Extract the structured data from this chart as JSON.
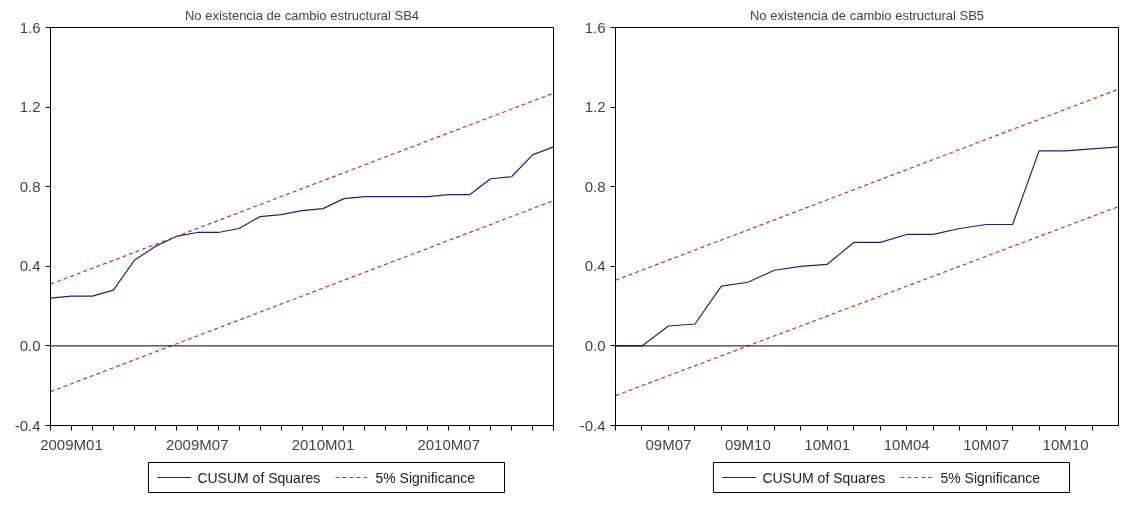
{
  "chart_data": [
    {
      "type": "line",
      "title": "No existencia de cambio estructural SB4",
      "xlim": [
        "2008-12",
        "2010-12"
      ],
      "ylim": [
        -0.4,
        1.6
      ],
      "yticks": [
        -0.4,
        {
          "value": 0,
          "label": "0.0"
        },
        0.4,
        0.8,
        1.2,
        1.6
      ],
      "xticks": [
        {
          "value": "2008-12",
          "label": null
        },
        {
          "value": "2009-01",
          "label": "2009M01"
        },
        {
          "value": "2009-02",
          "label": null
        },
        {
          "value": "2009-03",
          "label": null
        },
        {
          "value": "2009-04",
          "label": null
        },
        {
          "value": "2009-05",
          "label": null
        },
        {
          "value": "2009-06",
          "label": null
        },
        {
          "value": "2009-07",
          "label": "2009M07"
        },
        {
          "value": "2009-08",
          "label": null
        },
        {
          "value": "2009-09",
          "label": null
        },
        {
          "value": "2009-10",
          "label": null
        },
        {
          "value": "2009-11",
          "label": null
        },
        {
          "value": "2009-12",
          "label": null
        },
        {
          "value": "2010-01",
          "label": "2010M01"
        },
        {
          "value": "2010-02",
          "label": null
        },
        {
          "value": "2010-03",
          "label": null
        },
        {
          "value": "2010-04",
          "label": null
        },
        {
          "value": "2010-05",
          "label": null
        },
        {
          "value": "2010-06",
          "label": null
        },
        {
          "value": "2010-07",
          "label": "2010M07"
        },
        {
          "value": "2010-08",
          "label": null
        },
        {
          "value": "2010-09",
          "label": null
        },
        {
          "value": "2010-10",
          "label": null
        },
        {
          "value": "2010-11",
          "label": null
        },
        {
          "value": "2010-12",
          "label": null
        }
      ],
      "grid": false,
      "legend": "bottom",
      "ref_lines": [
        {
          "axis": "y",
          "value": 0.0,
          "color": "#000000"
        }
      ],
      "series": [
        {
          "name": "CUSUM of Squares",
          "color": "#1f1f8c",
          "line_style": "solid",
          "x": [
            "2008-12",
            "2009-01",
            "2009-02",
            "2009-03",
            "2009-04",
            "2009-05",
            "2009-06",
            "2009-07",
            "2009-08",
            "2009-09",
            "2009-10",
            "2009-11",
            "2009-12",
            "2010-01",
            "2010-02",
            "2010-03",
            "2010-04",
            "2010-05",
            "2010-06",
            "2010-07",
            "2010-08",
            "2010-09",
            "2010-10",
            "2010-11",
            "2010-12"
          ],
          "values": [
            0.24,
            0.25,
            0.25,
            0.28,
            0.43,
            0.5,
            0.55,
            0.57,
            0.57,
            0.59,
            0.65,
            0.66,
            0.68,
            0.69,
            0.74,
            0.75,
            0.75,
            0.75,
            0.75,
            0.76,
            0.76,
            0.84,
            0.85,
            0.96,
            1.0
          ]
        },
        {
          "name": "5% Significance",
          "color": "#c83232",
          "line_style": "dashed",
          "x": [
            "2008-12",
            "2010-12"
          ],
          "values": [
            0.31,
            1.27
          ]
        },
        {
          "color": "#c83232",
          "line_style": "dashed",
          "x": [
            "2008-12",
            "2010-12"
          ],
          "values": [
            -0.23,
            0.73
          ]
        }
      ]
    },
    {
      "type": "line",
      "title": "No existencia de cambio estructural SB5",
      "xlim": [
        "2009-05",
        "2010-12"
      ],
      "ylim": [
        -0.4,
        1.6
      ],
      "yticks": [
        -0.4,
        {
          "value": 0,
          "label": "0.0"
        },
        0.4,
        0.8,
        1.2,
        1.6
      ],
      "xticks": [
        {
          "value": "2009-05",
          "label": null
        },
        {
          "value": "2009-06",
          "label": null
        },
        {
          "value": "2009-07",
          "label": "09M07"
        },
        {
          "value": "2009-08",
          "label": null
        },
        {
          "value": "2009-09",
          "label": null
        },
        {
          "value": "2009-10",
          "label": "09M10"
        },
        {
          "value": "2009-11",
          "label": null
        },
        {
          "value": "2009-12",
          "label": null
        },
        {
          "value": "2010-01",
          "label": "10M01"
        },
        {
          "value": "2010-02",
          "label": null
        },
        {
          "value": "2010-03",
          "label": null
        },
        {
          "value": "2010-04",
          "label": "10M04"
        },
        {
          "value": "2010-05",
          "label": null
        },
        {
          "value": "2010-06",
          "label": null
        },
        {
          "value": "2010-07",
          "label": "10M07"
        },
        {
          "value": "2010-08",
          "label": null
        },
        {
          "value": "2010-09",
          "label": null
        },
        {
          "value": "2010-10",
          "label": "10M10"
        },
        {
          "value": "2010-11",
          "label": null
        }
      ],
      "grid": false,
      "legend": "bottom",
      "ref_lines": [
        {
          "axis": "y",
          "value": 0.0,
          "color": "#000000"
        }
      ],
      "series": [
        {
          "name": "CUSUM of Squares",
          "color": "#1f1f8c",
          "line_style": "solid",
          "x": [
            "2009-05",
            "2009-06",
            "2009-07",
            "2009-08",
            "2009-09",
            "2009-10",
            "2009-11",
            "2009-12",
            "2010-01",
            "2010-02",
            "2010-03",
            "2010-04",
            "2010-05",
            "2010-06",
            "2010-07",
            "2010-08",
            "2010-09",
            "2010-10",
            "2010-11",
            "2010-12"
          ],
          "values": [
            0.0,
            0.0,
            0.1,
            0.11,
            0.3,
            0.32,
            0.38,
            0.4,
            0.41,
            0.52,
            0.52,
            0.56,
            0.56,
            0.59,
            0.61,
            0.61,
            0.98,
            0.98,
            0.99,
            1.0
          ]
        },
        {
          "name": "5% Significance",
          "color": "#c83232",
          "line_style": "dashed",
          "x": [
            "2009-05",
            "2010-12"
          ],
          "values": [
            0.33,
            1.29
          ]
        },
        {
          "color": "#c83232",
          "line_style": "dashed",
          "x": [
            "2009-05",
            "2010-12"
          ],
          "values": [
            -0.25,
            0.7
          ]
        }
      ]
    }
  ]
}
